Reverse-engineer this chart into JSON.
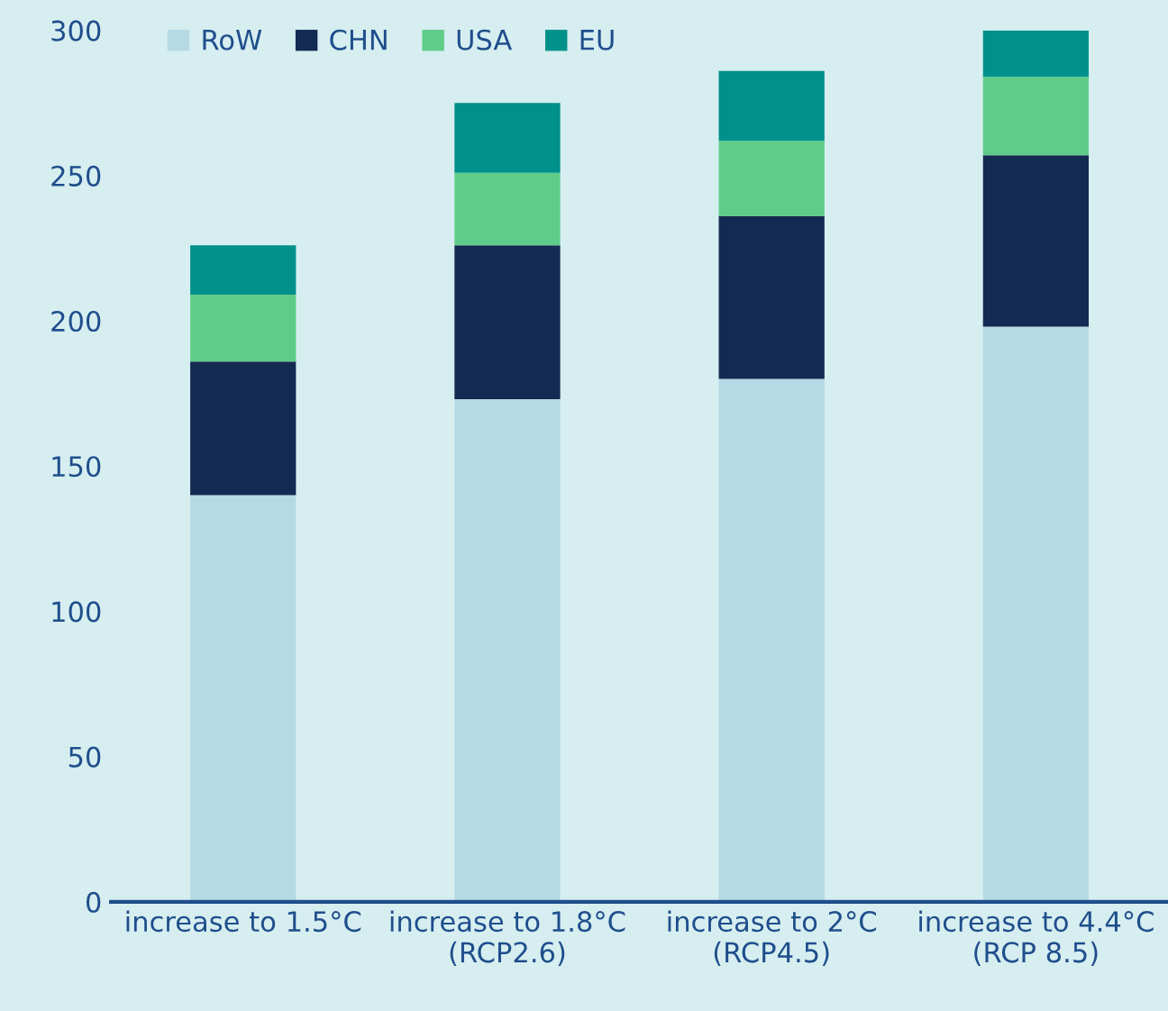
{
  "chart_data": {
    "type": "bar",
    "stacked": true,
    "categories": [
      "increase to 1.5°C",
      "increase to 1.8°C\n(RCP2.6)",
      "increase to 2°C\n(RCP4.5)",
      "increase to 4.4°C\n(RCP 8.5)"
    ],
    "series": [
      {
        "name": "RoW",
        "color": "#b5dae5",
        "values": [
          140,
          173,
          180,
          198
        ]
      },
      {
        "name": "CHN",
        "color": "#132a52",
        "values": [
          46,
          53,
          56,
          59
        ]
      },
      {
        "name": "USA",
        "color": "#5fcd89",
        "values": [
          23,
          25,
          26,
          27
        ]
      },
      {
        "name": "EU",
        "color": "#00918a",
        "values": [
          17,
          24,
          24,
          16
        ]
      }
    ],
    "ylim": [
      0,
      300
    ],
    "yticks": [
      0,
      50,
      100,
      150,
      200,
      250,
      300
    ],
    "grid": false,
    "legend": "top left"
  }
}
